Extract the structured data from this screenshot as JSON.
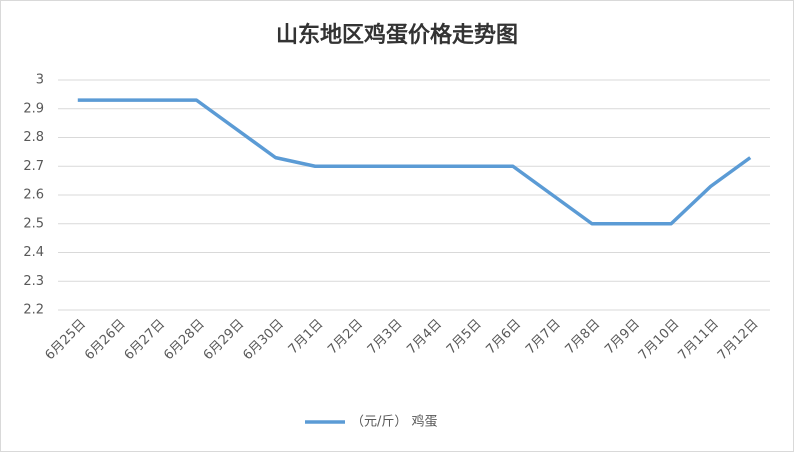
{
  "chart_data": {
    "type": "line",
    "title": "山东地区鸡蛋价格走势图",
    "categories": [
      "6月25日",
      "6月26日",
      "6月27日",
      "6月28日",
      "6月29日",
      "6月30日",
      "7月1日",
      "7月2日",
      "7月3日",
      "7月4日",
      "7月5日",
      "7月6日",
      "7月7日",
      "7月8日",
      "7月9日",
      "7月10日",
      "7月11日",
      "7月12日"
    ],
    "series": [
      {
        "name": "（元/斤） 鸡蛋",
        "color": "#5b9bd5",
        "values": [
          2.93,
          2.93,
          2.93,
          2.93,
          2.83,
          2.73,
          2.7,
          2.7,
          2.7,
          2.7,
          2.7,
          2.7,
          2.6,
          2.5,
          2.5,
          2.5,
          2.63,
          2.73
        ]
      }
    ],
    "ylim": [
      2.2,
      3
    ],
    "yticks": [
      2.2,
      2.3,
      2.4,
      2.5,
      2.6,
      2.7,
      2.8,
      2.9,
      3
    ],
    "grid": true,
    "legend": "bottom"
  }
}
